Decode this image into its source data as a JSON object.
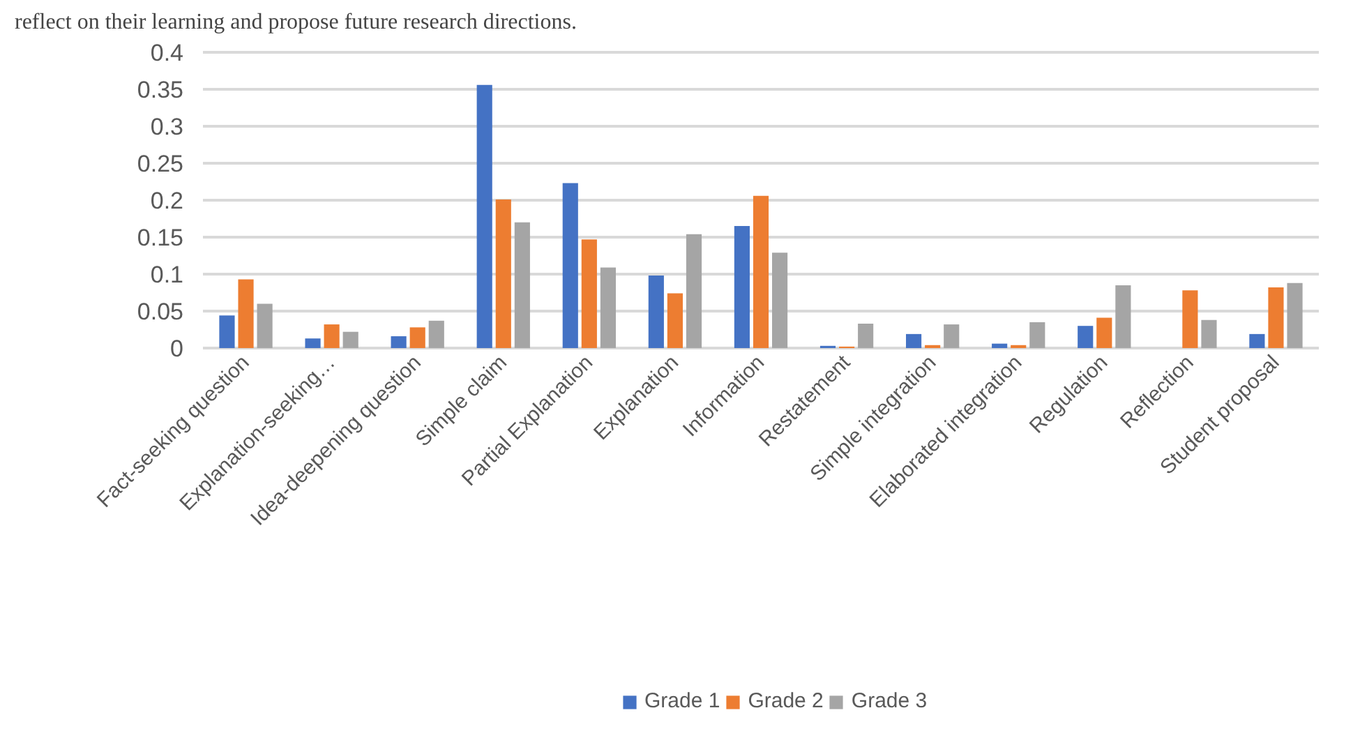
{
  "chart_data": {
    "type": "bar",
    "annotations": [
      "reflect on their learning and propose future research directions."
    ],
    "categories": [
      "Fact-seeking question",
      "Explanation-seeking…",
      "Idea-deepening question",
      "Simple claim",
      "Partial Explanation",
      "Explanation",
      "Information",
      "Restatement",
      "Simple integration",
      "Elaborated integration",
      "Regulation",
      "Reflection",
      "Student proposal"
    ],
    "series": [
      {
        "name": "Grade 1",
        "color": "#4472c4",
        "values": [
          0.044,
          0.013,
          0.016,
          0.356,
          0.223,
          0.098,
          0.165,
          0.003,
          0.019,
          0.006,
          0.03,
          0,
          0.019
        ]
      },
      {
        "name": "Grade 2",
        "color": "#ed7d31",
        "values": [
          0.093,
          0.032,
          0.028,
          0.201,
          0.147,
          0.074,
          0.206,
          0.002,
          0.004,
          0.004,
          0.041,
          0.078,
          0.082
        ]
      },
      {
        "name": "Grade 3",
        "color": "#a5a5a5",
        "values": [
          0.06,
          0.022,
          0.037,
          0.17,
          0.109,
          0.154,
          0.129,
          0.033,
          0.032,
          0.035,
          0.085,
          0.038,
          0.088
        ]
      }
    ],
    "ylim": [
      0,
      0.4
    ],
    "yticks": [
      0,
      0.05,
      0.1,
      0.15,
      0.2,
      0.25,
      0.3,
      0.35,
      0.4
    ],
    "grid": "y",
    "legend": "bottom"
  }
}
